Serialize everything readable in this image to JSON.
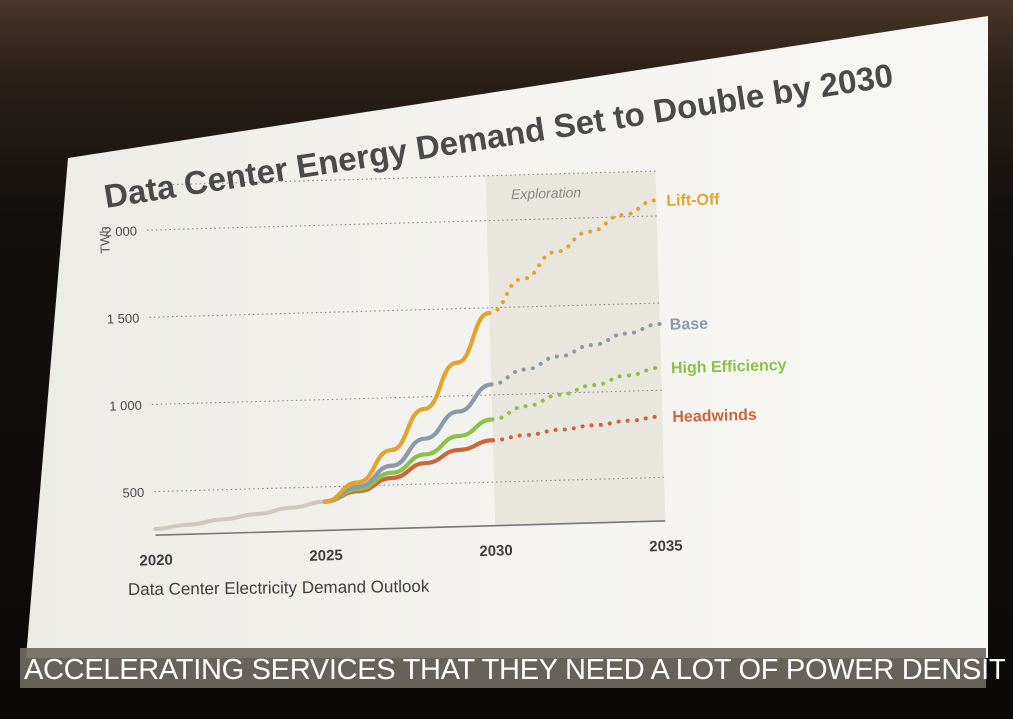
{
  "slide": {
    "title": "Data Center Energy Demand Set to Double by 2030",
    "footer_caption": "Data Center Electricity Demand Outlook",
    "region_label": "Exploration"
  },
  "subtitle_bar": {
    "text": "ACCELERATING SERVICES THAT THEY NEED A LOT OF POWER DENSITY"
  },
  "colors": {
    "lift_off": "#e0a530",
    "base": "#8a9aa8",
    "high_efficiency": "#8cc04a",
    "headwinds": "#c8683a",
    "history": "#cfc9bd",
    "title": "#4a4a4a"
  },
  "chart_data": {
    "type": "line",
    "title": "Data Center Energy Demand Set to Double by 2030",
    "xlabel": "",
    "ylabel": "TWh",
    "xlim": [
      2020,
      2035
    ],
    "ylim": [
      250,
      2200
    ],
    "x_ticks": [
      "2020",
      "2025",
      "2030",
      "2035"
    ],
    "y_ticks": [
      "500",
      "1 000",
      "1 500",
      "2 000"
    ],
    "grid": true,
    "shaded_region": {
      "label": "Exploration",
      "x": [
        2030,
        2035
      ]
    },
    "history": {
      "x": [
        2020,
        2021,
        2022,
        2023,
        2024,
        2025
      ],
      "y": [
        285,
        305,
        330,
        355,
        385,
        415
      ]
    },
    "series": [
      {
        "name": "Lift-Off",
        "color": "#e0a530",
        "solid": {
          "x": [
            2025,
            2026,
            2027,
            2028,
            2029,
            2030
          ],
          "y": [
            415,
            520,
            700,
            930,
            1190,
            1470
          ]
        },
        "dotted": {
          "x": [
            2030,
            2031,
            2032,
            2033,
            2034,
            2035
          ],
          "y": [
            1470,
            1660,
            1810,
            1920,
            2010,
            2090
          ]
        }
      },
      {
        "name": "Base",
        "color": "#8a9aa8",
        "solid": {
          "x": [
            2025,
            2026,
            2027,
            2028,
            2029,
            2030
          ],
          "y": [
            415,
            495,
            610,
            760,
            910,
            1060
          ]
        },
        "dotted": {
          "x": [
            2030,
            2031,
            2032,
            2033,
            2034,
            2035
          ],
          "y": [
            1060,
            1140,
            1210,
            1270,
            1330,
            1380
          ]
        }
      },
      {
        "name": "High Efficiency",
        "color": "#8cc04a",
        "solid": {
          "x": [
            2025,
            2026,
            2027,
            2028,
            2029,
            2030
          ],
          "y": [
            415,
            480,
            570,
            670,
            770,
            860
          ]
        },
        "dotted": {
          "x": [
            2030,
            2031,
            2032,
            2033,
            2034,
            2035
          ],
          "y": [
            860,
            930,
            990,
            1040,
            1090,
            1130
          ]
        }
      },
      {
        "name": "Headwinds",
        "color": "#c8683a",
        "solid": {
          "x": [
            2025,
            2026,
            2027,
            2028,
            2029,
            2030
          ],
          "y": [
            415,
            470,
            540,
            620,
            690,
            740
          ]
        },
        "dotted": {
          "x": [
            2030,
            2031,
            2032,
            2033,
            2034,
            2035
          ],
          "y": [
            740,
            765,
            790,
            810,
            830,
            850
          ]
        }
      }
    ]
  }
}
